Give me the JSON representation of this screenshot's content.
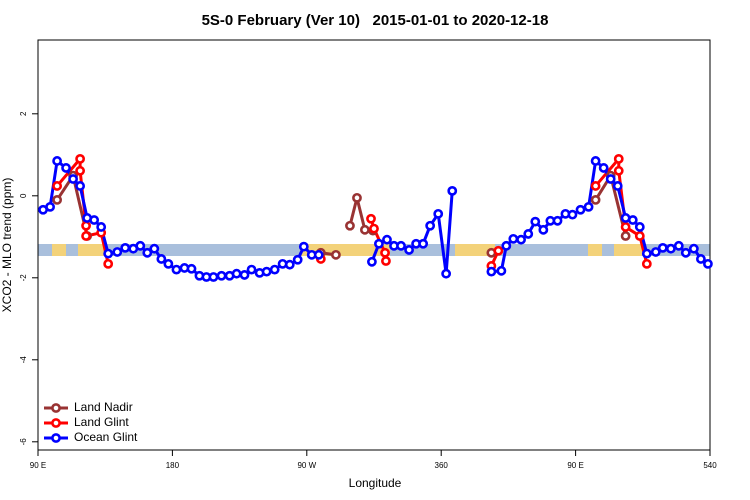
{
  "chart_data": {
    "type": "line",
    "title": "5S-0 February (Ver 10)   2015-01-01 to 2020-12-18",
    "x_label": "Longitude",
    "y_label": "XCO2 - MLO trend (ppm)",
    "xlim": [
      90,
      540
    ],
    "xticks": [
      {
        "value": 90,
        "label": "90 E"
      },
      180,
      {
        "value": 270,
        "label": "90 W"
      },
      360,
      {
        "value": 450,
        "label": "90 E"
      },
      540
    ],
    "ylim": [
      -6.2,
      3.8
    ],
    "yticks": [
      2,
      0,
      -2,
      -4,
      -6
    ],
    "legend": "bottom-left",
    "series": [
      {
        "name": "Land Nadir",
        "color": "#993333",
        "x": [
          102.8,
          113.5,
          122.9,
          null,
          279.4,
          289.5,
          null,
          298.9,
          303.6,
          308.9,
          314.3,
          null,
          393.6,
          null,
          463.4,
          473.5,
          483.5
        ],
        "values": [
          -0.1,
          0.49,
          -0.98,
          null,
          -1.39,
          -1.44,
          null,
          -0.73,
          -0.05,
          -0.83,
          -0.85,
          null,
          -1.39,
          null,
          -0.1,
          0.49,
          -0.98
        ]
      },
      {
        "name": "Land Glint",
        "color": "#ff0000",
        "x": [
          102.8,
          118.2,
          118.2,
          122.2,
          122.2,
          132.3,
          137.0,
          null,
          279.4,
          null,
          313.0,
          315.0,
          322.4,
          323.0,
          null,
          393.6,
          398.3,
          null,
          463.4,
          478.9,
          478.9,
          483.5,
          493.0,
          497.7
        ],
        "values": [
          0.24,
          0.9,
          0.61,
          -0.73,
          -0.98,
          -0.9,
          -1.66,
          null,
          -1.54,
          null,
          -0.56,
          -0.8,
          -1.39,
          -1.59,
          null,
          -1.71,
          -1.34,
          null,
          0.24,
          0.9,
          0.61,
          -0.76,
          -0.98,
          -1.66
        ]
      },
      {
        "name": "Ocean Glint",
        "color": "#0000ff",
        "x": [
          93.4,
          98.1,
          102.8,
          108.8,
          113.5,
          118.2,
          122.9,
          127.6,
          132.3,
          137.0,
          143.1,
          148.4,
          153.8,
          158.5,
          163.2,
          167.9,
          172.6,
          177.3,
          182.7,
          188.1,
          192.8,
          198.1,
          202.8,
          207.5,
          212.9,
          218.3,
          223.0,
          228.3,
          233.0,
          238.4,
          243.1,
          248.5,
          253.8,
          258.6,
          263.9,
          268.0,
          273.3,
          278.0,
          null,
          313.6,
          318.3,
          323.7,
          328.4,
          333.1,
          338.5,
          343.2,
          347.9,
          352.6,
          358.0,
          363.3,
          367.4,
          null,
          393.6,
          400.3,
          403.6,
          408.3,
          413.5,
          418.3,
          423.0,
          428.4,
          433.1,
          437.9,
          443.2,
          447.9,
          453.3,
          458.7,
          463.4,
          468.8,
          473.5,
          478.2,
          483.5,
          488.3,
          493.0,
          497.7,
          503.7,
          508.4,
          513.8,
          519.1,
          523.8,
          529.2,
          533.9,
          538.6
        ],
        "values": [
          -0.34,
          -0.27,
          0.85,
          0.68,
          0.41,
          0.24,
          -0.54,
          -0.59,
          -0.76,
          -1.41,
          -1.37,
          -1.27,
          -1.29,
          -1.22,
          -1.39,
          -1.29,
          -1.54,
          -1.66,
          -1.8,
          -1.76,
          -1.78,
          -1.95,
          -1.98,
          -1.98,
          -1.95,
          -1.95,
          -1.9,
          -1.93,
          -1.8,
          -1.88,
          -1.85,
          -1.8,
          -1.66,
          -1.68,
          -1.56,
          -1.24,
          -1.44,
          -1.44,
          null,
          -1.61,
          -1.17,
          -1.07,
          -1.22,
          -1.22,
          -1.32,
          -1.17,
          -1.17,
          -0.73,
          -0.44,
          -1.9,
          0.12,
          null,
          -1.85,
          -1.83,
          -1.22,
          -1.05,
          -1.07,
          -0.93,
          -0.63,
          -0.83,
          -0.61,
          -0.61,
          -0.44,
          -0.46,
          -0.34,
          -0.27,
          0.85,
          0.68,
          0.41,
          0.24,
          -0.54,
          -0.59,
          -0.76,
          -1.41,
          -1.37,
          -1.27,
          -1.29,
          -1.22,
          -1.39,
          -1.29,
          -1.54,
          -1.66
        ]
      }
    ]
  }
}
